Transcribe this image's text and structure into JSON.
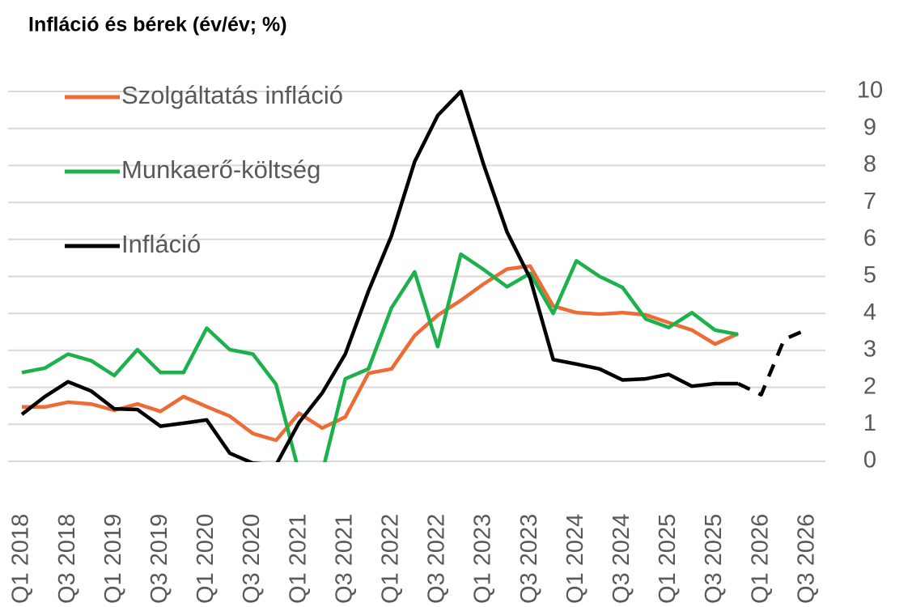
{
  "chart_data": {
    "type": "line",
    "title": "Infláció és bérek (év/év; %)",
    "categories": [
      "Q1 2018",
      null,
      "Q3 2018",
      null,
      "Q1 2019",
      null,
      "Q3 2019",
      null,
      "Q1 2020",
      null,
      "Q3 2020",
      null,
      "Q1 2021",
      null,
      "Q3 2021",
      null,
      "Q1 2022",
      null,
      "Q3 2022",
      null,
      "Q1 2023",
      null,
      "Q3 2023",
      null,
      "Q1 2024",
      null,
      "Q3 2024",
      null,
      "Q1 2025",
      null,
      "Q3 2025",
      null,
      "Q1 2026",
      null,
      "Q3 2026"
    ],
    "series": [
      {
        "name": "Szolgáltatás infláció",
        "color": "#ed6b35",
        "values": [
          1.47,
          1.47,
          1.6,
          1.55,
          1.38,
          1.55,
          1.35,
          1.75,
          1.48,
          1.22,
          0.75,
          0.57,
          1.3,
          0.9,
          1.2,
          2.38,
          2.5,
          3.4,
          3.95,
          4.35,
          4.8,
          5.2,
          5.28,
          4.2,
          4.02,
          3.98,
          4.02,
          3.96,
          3.75,
          3.55,
          3.17,
          3.45,
          null,
          null,
          null
        ]
      },
      {
        "name": "Munkaerő-költség",
        "color": "#1db14b",
        "values": [
          2.4,
          2.52,
          2.9,
          2.72,
          2.32,
          3.02,
          2.4,
          2.4,
          3.6,
          3.02,
          2.9,
          2.08,
          -0.3,
          -0.3,
          2.23,
          2.5,
          4.15,
          5.12,
          3.1,
          5.6,
          5.18,
          4.72,
          5.08,
          4.0,
          5.42,
          5.0,
          4.7,
          3.85,
          3.62,
          4.02,
          3.55,
          3.43,
          null,
          null,
          null
        ]
      },
      {
        "name": "Infláció",
        "color": "#000000",
        "dashed_from": 31,
        "values": [
          1.27,
          1.75,
          2.15,
          1.9,
          1.42,
          1.4,
          0.95,
          1.03,
          1.12,
          0.22,
          -0.05,
          -0.1,
          1.05,
          1.85,
          2.9,
          4.6,
          6.1,
          8.1,
          9.35,
          10.0,
          8.0,
          6.2,
          4.95,
          2.75,
          2.63,
          2.5,
          2.2,
          2.23,
          2.35,
          2.03,
          2.1,
          2.1,
          1.8,
          3.3,
          3.57
        ]
      }
    ],
    "ylim": [
      0,
      10
    ],
    "yticks": [
      0,
      1,
      2,
      3,
      4,
      5,
      6,
      7,
      8,
      9,
      10
    ],
    "y_axis_side": "right",
    "grid": true,
    "legend": "upper left"
  }
}
